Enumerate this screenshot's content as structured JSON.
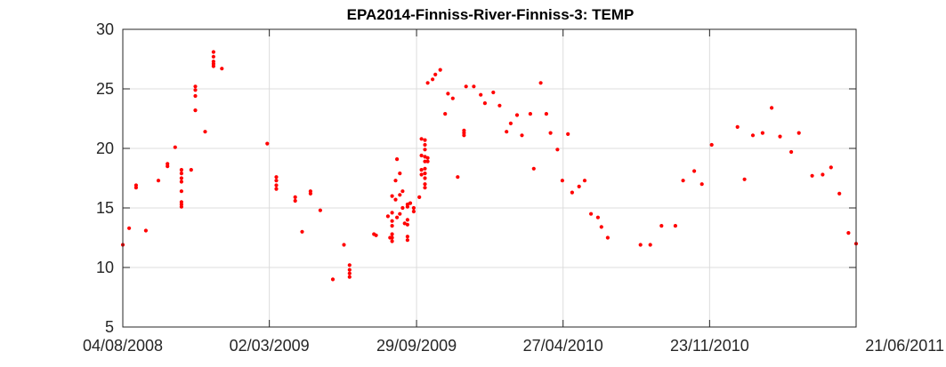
{
  "chart_data": {
    "type": "scatter",
    "title": "EPA2014-Finniss-River-Finniss-3: TEMP",
    "xlabel": "",
    "ylabel": "",
    "xlim": [
      "2008-08-04",
      "2011-06-21"
    ],
    "ylim": [
      5,
      30
    ],
    "xticks": [
      "2008-08-04",
      "2009-03-02",
      "2009-09-29",
      "2010-04-27",
      "2010-11-23",
      "2011-06-21"
    ],
    "xticklabels": [
      "04/08/2008",
      "02/03/2009",
      "29/09/2009",
      "27/04/2010",
      "23/11/2010",
      "21/06/2011"
    ],
    "yticks": [
      5,
      10,
      15,
      20,
      25,
      30
    ],
    "yticklabels": [
      "5",
      "10",
      "15",
      "20",
      "25",
      "30"
    ],
    "grid": true,
    "marker_color": "#ff0000",
    "series": [
      {
        "points": [
          [
            "2008-08-04",
            11.9
          ],
          [
            "2008-08-13",
            13.3
          ],
          [
            "2008-08-23",
            16.7
          ],
          [
            "2008-08-23",
            16.9
          ],
          [
            "2008-09-06",
            13.1
          ],
          [
            "2008-09-24",
            17.3
          ],
          [
            "2008-10-07",
            18.5
          ],
          [
            "2008-10-07",
            18.7
          ],
          [
            "2008-10-18",
            20.1
          ],
          [
            "2008-10-27",
            18.2
          ],
          [
            "2008-10-27",
            17.9
          ],
          [
            "2008-10-27",
            17.5
          ],
          [
            "2008-10-27",
            17.2
          ],
          [
            "2008-10-27",
            16.4
          ],
          [
            "2008-10-27",
            15.5
          ],
          [
            "2008-10-27",
            15.3
          ],
          [
            "2008-10-27",
            15.1
          ],
          [
            "2008-11-10",
            18.2
          ],
          [
            "2008-11-16",
            25.2
          ],
          [
            "2008-11-16",
            24.9
          ],
          [
            "2008-11-16",
            24.4
          ],
          [
            "2008-11-16",
            23.2
          ],
          [
            "2008-11-30",
            21.4
          ],
          [
            "2008-12-12",
            28.1
          ],
          [
            "2008-12-12",
            27.7
          ],
          [
            "2008-12-12",
            27.3
          ],
          [
            "2008-12-12",
            27.1
          ],
          [
            "2008-12-12",
            26.9
          ],
          [
            "2008-12-24",
            26.7
          ],
          [
            "2009-02-27",
            20.4
          ],
          [
            "2009-03-12",
            17.6
          ],
          [
            "2009-03-12",
            17.3
          ],
          [
            "2009-03-12",
            16.9
          ],
          [
            "2009-03-12",
            16.6
          ],
          [
            "2009-04-08",
            15.9
          ],
          [
            "2009-04-08",
            15.6
          ],
          [
            "2009-04-18",
            13.0
          ],
          [
            "2009-04-30",
            16.4
          ],
          [
            "2009-04-30",
            16.2
          ],
          [
            "2009-05-14",
            14.8
          ],
          [
            "2009-06-01",
            9.0
          ],
          [
            "2009-06-17",
            11.9
          ],
          [
            "2009-06-25",
            10.2
          ],
          [
            "2009-06-25",
            9.8
          ],
          [
            "2009-06-25",
            9.5
          ],
          [
            "2009-06-25",
            9.2
          ],
          [
            "2009-07-30",
            12.8
          ],
          [
            "2009-08-02",
            12.7
          ],
          [
            "2009-08-19",
            14.3
          ],
          [
            "2009-08-22",
            12.5
          ],
          [
            "2009-08-25",
            16.0
          ],
          [
            "2009-08-25",
            14.6
          ],
          [
            "2009-08-25",
            13.9
          ],
          [
            "2009-08-25",
            13.5
          ],
          [
            "2009-08-25",
            12.8
          ],
          [
            "2009-08-25",
            12.5
          ],
          [
            "2009-08-25",
            12.2
          ],
          [
            "2009-08-30",
            17.3
          ],
          [
            "2009-08-30",
            15.7
          ],
          [
            "2009-09-01",
            19.1
          ],
          [
            "2009-09-01",
            14.2
          ],
          [
            "2009-09-05",
            17.9
          ],
          [
            "2009-09-05",
            14.5
          ],
          [
            "2009-09-05",
            16.1
          ],
          [
            "2009-09-09",
            16.4
          ],
          [
            "2009-09-09",
            15.0
          ],
          [
            "2009-09-12",
            13.7
          ],
          [
            "2009-09-16",
            15.3
          ],
          [
            "2009-09-16",
            15.1
          ],
          [
            "2009-09-16",
            14.0
          ],
          [
            "2009-09-16",
            13.6
          ],
          [
            "2009-09-16",
            12.6
          ],
          [
            "2009-09-16",
            12.3
          ],
          [
            "2009-09-20",
            15.4
          ],
          [
            "2009-09-25",
            15.0
          ],
          [
            "2009-09-25",
            14.7
          ],
          [
            "2009-10-03",
            15.9
          ],
          [
            "2009-10-06",
            17.8
          ],
          [
            "2009-10-06",
            18.2
          ],
          [
            "2009-10-06",
            19.4
          ],
          [
            "2009-10-06",
            20.8
          ],
          [
            "2009-10-11",
            20.7
          ],
          [
            "2009-10-11",
            20.3
          ],
          [
            "2009-10-11",
            19.9
          ],
          [
            "2009-10-11",
            19.3
          ],
          [
            "2009-10-11",
            18.9
          ],
          [
            "2009-10-11",
            18.3
          ],
          [
            "2009-10-11",
            17.9
          ],
          [
            "2009-10-11",
            17.5
          ],
          [
            "2009-10-11",
            17.0
          ],
          [
            "2009-10-11",
            16.7
          ],
          [
            "2009-10-15",
            19.2
          ],
          [
            "2009-10-15",
            18.9
          ],
          [
            "2009-10-15",
            25.5
          ],
          [
            "2009-10-22",
            25.8
          ],
          [
            "2009-10-26",
            26.2
          ],
          [
            "2009-11-02",
            26.6
          ],
          [
            "2009-11-09",
            22.9
          ],
          [
            "2009-11-13",
            24.6
          ],
          [
            "2009-11-20",
            24.2
          ],
          [
            "2009-11-27",
            17.6
          ],
          [
            "2009-12-06",
            21.5
          ],
          [
            "2009-12-06",
            21.3
          ],
          [
            "2009-12-06",
            21.1
          ],
          [
            "2009-12-09",
            25.2
          ],
          [
            "2009-12-20",
            25.2
          ],
          [
            "2009-12-30",
            24.5
          ],
          [
            "2010-01-05",
            23.8
          ],
          [
            "2010-01-17",
            24.7
          ],
          [
            "2010-01-26",
            23.6
          ],
          [
            "2010-02-05",
            21.4
          ],
          [
            "2010-02-11",
            22.1
          ],
          [
            "2010-02-20",
            22.8
          ],
          [
            "2010-02-27",
            21.1
          ],
          [
            "2010-03-11",
            22.9
          ],
          [
            "2010-03-16",
            18.3
          ],
          [
            "2010-03-26",
            25.5
          ],
          [
            "2010-04-03",
            22.9
          ],
          [
            "2010-04-09",
            21.3
          ],
          [
            "2010-04-19",
            19.9
          ],
          [
            "2010-04-26",
            17.3
          ],
          [
            "2010-05-04",
            21.2
          ],
          [
            "2010-05-10",
            16.3
          ],
          [
            "2010-05-20",
            16.8
          ],
          [
            "2010-05-28",
            17.3
          ],
          [
            "2010-06-06",
            14.5
          ],
          [
            "2010-06-16",
            14.2
          ],
          [
            "2010-06-21",
            13.4
          ],
          [
            "2010-06-30",
            12.5
          ],
          [
            "2010-08-16",
            11.9
          ],
          [
            "2010-08-30",
            11.9
          ],
          [
            "2010-09-15",
            13.5
          ],
          [
            "2010-10-05",
            13.5
          ],
          [
            "2010-10-16",
            17.3
          ],
          [
            "2010-11-01",
            18.1
          ],
          [
            "2010-11-12",
            17.0
          ],
          [
            "2010-11-26",
            20.3
          ],
          [
            "2011-01-02",
            21.8
          ],
          [
            "2011-01-12",
            17.4
          ],
          [
            "2011-01-24",
            21.1
          ],
          [
            "2011-02-07",
            21.3
          ],
          [
            "2011-02-20",
            23.4
          ],
          [
            "2011-03-04",
            21.0
          ],
          [
            "2011-03-20",
            19.7
          ],
          [
            "2011-03-31",
            21.3
          ],
          [
            "2011-04-19",
            17.7
          ],
          [
            "2011-05-04",
            17.8
          ],
          [
            "2011-05-16",
            18.4
          ],
          [
            "2011-05-28",
            16.2
          ],
          [
            "2011-06-10",
            12.9
          ],
          [
            "2011-06-21",
            12.0
          ]
        ]
      }
    ]
  }
}
